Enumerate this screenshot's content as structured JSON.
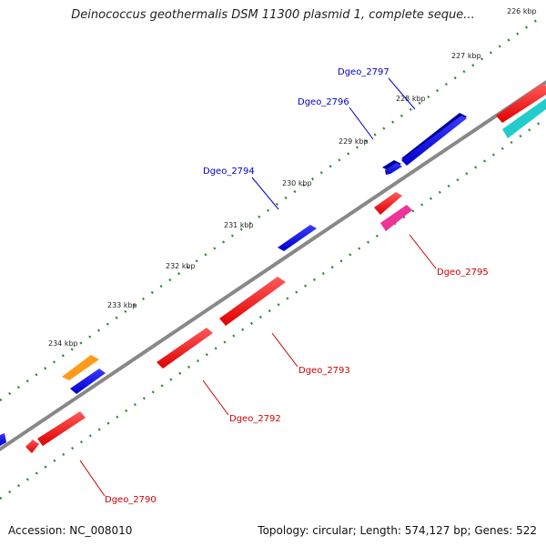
{
  "title": "Deinococcus geothermalis DSM 11300 plasmid 1, complete seque...",
  "footer": {
    "accession": "Accession: NC_008010",
    "summary": "Topology: circular; Length: 574,127 bp; Genes: 522"
  },
  "colors": {
    "backbone": "#888888",
    "tick": "#2a8a2a",
    "forward_label": "#0000cc",
    "reverse_label": "#cc0000"
  },
  "tick_labels": [
    "226 kbp",
    "227 kbp",
    "228 kbp",
    "229 kbp",
    "230 kbp",
    "231 kbp",
    "232 kbp",
    "233 kbp",
    "234 kbp"
  ],
  "gene_labels": [
    "Dgeo_2797",
    "Dgeo_2796",
    "Dgeo_2794",
    "Dgeo_2795",
    "Dgeo_2793",
    "Dgeo_2792",
    "Dgeo_2790"
  ]
}
